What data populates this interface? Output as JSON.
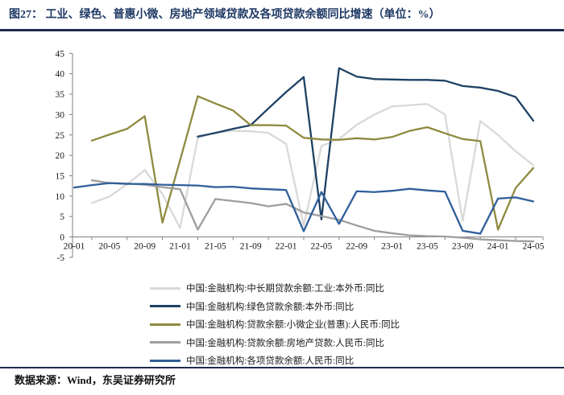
{
  "figure": {
    "title": "图27：  工业、绿色、普惠小微、房地产领域贷款及各项贷款余额同比增速（单位：%）",
    "source_note": "数据来源：Wind，东吴证券研究所",
    "title_color": "#1f3864",
    "rule_color": "#1e2a4d",
    "axis_color": "#808080",
    "tick_text_color": "#1a1a1a"
  },
  "chart_data": {
    "type": "line",
    "grid": false,
    "legend_position": "bottom",
    "ylim": [
      -5,
      45
    ],
    "y_ticks": [
      -5,
      0,
      5,
      10,
      15,
      20,
      25,
      30,
      35,
      40,
      45
    ],
    "x": [
      "20-01",
      "20-03",
      "20-05",
      "20-07",
      "20-09",
      "20-11",
      "21-01",
      "21-03",
      "21-05",
      "21-07",
      "21-09",
      "21-11",
      "22-01",
      "22-03",
      "22-05",
      "22-07",
      "22-09",
      "22-11",
      "23-01",
      "23-03",
      "23-05",
      "23-07",
      "23-09",
      "23-11",
      "24-01",
      "24-03",
      "24-05"
    ],
    "x_axis_labels": [
      "20-01",
      "20-05",
      "20-09",
      "21-01",
      "21-05",
      "21-09",
      "22-01",
      "22-05",
      "22-09",
      "23-01",
      "23-05",
      "23-09",
      "24-01",
      "24-05"
    ],
    "series": [
      {
        "name": "中国:金融机构:中长期贷款余额:工业:本外币:同比",
        "color": "#d9d9d9",
        "values": [
          null,
          8.3,
          9.9,
          12.9,
          16.4,
          10.5,
          2.2,
          24.3,
          25.6,
          26.0,
          25.9,
          25.5,
          22.8,
          2.8,
          22.3,
          24.0,
          27.5,
          30.0,
          32.0,
          32.3,
          32.6,
          30.0,
          3.9,
          28.4,
          25.0,
          21.0,
          17.6
        ]
      },
      {
        "name": "中国:金融机构:绿色贷款余额:本外币:同比",
        "color": "#1e4164",
        "values": [
          null,
          null,
          null,
          null,
          null,
          null,
          null,
          24.6,
          25.5,
          26.5,
          27.4,
          31.5,
          35.5,
          39.2,
          4.3,
          41.4,
          39.3,
          38.7,
          38.6,
          38.5,
          38.5,
          38.3,
          37.0,
          36.6,
          35.8,
          34.3,
          28.5
        ]
      },
      {
        "name": "中国:金融机构:贷款余额:小微企业(普惠):人民币:同比",
        "color": "#8f8a3f",
        "values": [
          null,
          23.6,
          25.1,
          26.5,
          29.6,
          3.5,
          18.8,
          34.5,
          32.7,
          31.0,
          27.4,
          27.4,
          27.3,
          24.3,
          23.9,
          23.8,
          24.2,
          23.9,
          24.5,
          26.0,
          26.9,
          25.4,
          24.0,
          23.5,
          1.8,
          12.0,
          16.9
        ]
      },
      {
        "name": "中国:金融机构:贷款余额:房地产贷款:人民币:同比",
        "color": "#9e9e9e",
        "values": [
          null,
          13.9,
          13.2,
          13.1,
          12.8,
          12.2,
          11.7,
          1.8,
          9.3,
          8.8,
          8.3,
          7.5,
          8.1,
          6.0,
          5.1,
          4.2,
          2.8,
          1.5,
          0.9,
          0.4,
          0.2,
          0.1,
          -0.2,
          -0.6,
          -0.8,
          -1.0,
          -1.1
        ]
      },
      {
        "name": "中国:金融机构:各项贷款余额:人民币:同比",
        "color": "#2f5f9a",
        "values": [
          12.1,
          12.7,
          13.2,
          13.0,
          13.0,
          12.8,
          12.7,
          12.6,
          12.2,
          12.3,
          11.9,
          11.7,
          11.5,
          1.4,
          11.0,
          3.2,
          11.2,
          11.0,
          11.3,
          11.8,
          11.4,
          11.1,
          1.5,
          0.8,
          9.4,
          9.7,
          8.7
        ]
      }
    ]
  }
}
